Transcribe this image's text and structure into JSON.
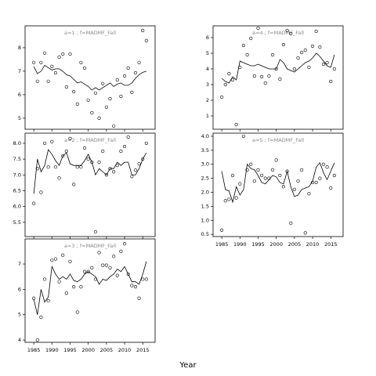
{
  "xlabel": "Year",
  "chart_data": [
    {
      "type": "scatter-line",
      "title": "a=1 ; f=MADMF_Fall",
      "xlim": [
        1982.6,
        2018.4
      ],
      "ylim": [
        4.53,
        8.93
      ],
      "xticks": [
        1985,
        1990,
        1995,
        2000,
        2005,
        2010,
        2015
      ],
      "yticks": [
        5,
        6,
        7,
        8
      ],
      "xtick_labels": false,
      "x": [
        1985,
        1986,
        1987,
        1988,
        1989,
        1990,
        1991,
        1992,
        1993,
        1994,
        1995,
        1996,
        1997,
        1998,
        1999,
        2000,
        2001,
        2002,
        2003,
        2004,
        2005,
        2006,
        2007,
        2008,
        2009,
        2010,
        2011,
        2012,
        2013,
        2014,
        2015,
        2016
      ],
      "series": [
        {
          "style": "points",
          "color": "#000000",
          "values": [
            7.37,
            6.57,
            7.37,
            7.77,
            6.57,
            7.2,
            6.93,
            7.6,
            7.73,
            6.33,
            7.73,
            6.13,
            5.6,
            7.37,
            7.13,
            5.77,
            5.23,
            6.07,
            5.0,
            6.47,
            5.47,
            5.83,
            4.67,
            6.63,
            5.93,
            6.8,
            7.13,
            6.1,
            6.93,
            7.37,
            8.73,
            8.3
          ]
        },
        {
          "style": "line",
          "color": "#000000",
          "values": [
            7.2,
            6.9,
            7.0,
            7.25,
            7.15,
            7.05,
            7.1,
            7.1,
            7.0,
            6.85,
            6.8,
            6.65,
            6.5,
            6.55,
            6.45,
            6.35,
            6.2,
            6.3,
            6.2,
            6.3,
            6.4,
            6.5,
            6.35,
            6.45,
            6.5,
            6.4,
            6.4,
            6.5,
            6.7,
            6.85,
            6.95,
            7.0
          ]
        }
      ]
    },
    {
      "type": "scatter-line",
      "title": "a=2 ; f=MADMF_Fall",
      "xlim": [
        1982.6,
        2018.4
      ],
      "ylim": [
        5.05,
        8.32
      ],
      "xticks": [
        1985,
        1990,
        1995,
        2000,
        2005,
        2010,
        2015
      ],
      "yticks": [
        5.5,
        {
          "value": 6,
          "label": "6.0"
        },
        6.5,
        {
          "value": 7,
          "label": "7.0"
        },
        7.5,
        {
          "value": 8,
          "label": "8.0"
        }
      ],
      "xtick_labels": false,
      "x": [
        1985,
        1986,
        1987,
        1988,
        1989,
        1990,
        1991,
        1992,
        1993,
        1994,
        1995,
        1996,
        1997,
        1998,
        1999,
        2000,
        2001,
        2002,
        2003,
        2004,
        2005,
        2006,
        2007,
        2008,
        2009,
        2010,
        2011,
        2012,
        2013,
        2014,
        2015,
        2016
      ],
      "series": [
        {
          "style": "points",
          "color": "#000000",
          "values": [
            6.1,
            7.2,
            6.45,
            8.0,
            7.25,
            8.05,
            7.25,
            6.9,
            7.6,
            7.75,
            8.15,
            6.7,
            7.25,
            7.25,
            7.85,
            7.5,
            7.4,
            5.2,
            7.4,
            7.75,
            7.0,
            7.2,
            7.1,
            7.3,
            7.75,
            7.9,
            8.2,
            6.95,
            7.15,
            7.35,
            7.5,
            8.0
          ]
        },
        {
          "style": "line",
          "color": "#000000",
          "values": [
            6.4,
            7.5,
            7.1,
            7.3,
            7.8,
            7.65,
            7.45,
            7.3,
            7.6,
            7.7,
            7.35,
            7.3,
            7.3,
            7.3,
            7.45,
            7.65,
            7.4,
            7.0,
            7.2,
            7.1,
            7.0,
            7.2,
            7.2,
            7.4,
            7.3,
            7.4,
            7.4,
            7.0,
            7.0,
            7.2,
            7.5,
            7.7
          ]
        }
      ]
    },
    {
      "type": "scatter-line",
      "title": "a=3 ; f=MADMF_Fall",
      "xlim": [
        1982.6,
        2018.4
      ],
      "ylim": [
        3.91,
        7.99
      ],
      "xticks": [
        1985,
        1990,
        1995,
        2000,
        2005,
        2010,
        2015
      ],
      "yticks": [
        4,
        5,
        6,
        7
      ],
      "xtick_labels": true,
      "x": [
        1985,
        1986,
        1987,
        1988,
        1989,
        1990,
        1991,
        1992,
        1993,
        1994,
        1995,
        1996,
        1997,
        1998,
        1999,
        2000,
        2001,
        2002,
        2003,
        2004,
        2005,
        2006,
        2007,
        2008,
        2009,
        2010,
        2011,
        2012,
        2013,
        2014,
        2015,
        2016
      ],
      "series": [
        {
          "style": "points",
          "color": "#000000",
          "values": [
            5.65,
            4.0,
            4.9,
            6.4,
            5.55,
            7.15,
            7.2,
            6.3,
            7.35,
            5.85,
            7.1,
            6.1,
            5.1,
            6.1,
            6.7,
            6.7,
            6.85,
            6.4,
            7.45,
            6.95,
            6.95,
            6.85,
            7.3,
            6.55,
            7.5,
            7.8,
            6.6,
            6.15,
            6.1,
            5.65,
            6.4,
            6.4
          ]
        },
        {
          "style": "line",
          "color": "#000000",
          "values": [
            5.6,
            5.0,
            6.0,
            5.5,
            5.7,
            6.9,
            6.6,
            6.4,
            6.5,
            6.4,
            6.6,
            6.35,
            6.3,
            6.4,
            6.6,
            6.7,
            6.6,
            6.5,
            6.2,
            6.4,
            6.35,
            6.5,
            6.6,
            6.8,
            6.7,
            6.9,
            6.6,
            6.3,
            6.3,
            6.2,
            6.6,
            7.1
          ]
        }
      ]
    },
    {
      "type": "scatter-line",
      "title": "a=4 ; f=MADMF_Fall",
      "xlim": [
        1982.6,
        2018.4
      ],
      "ylim": [
        0.15,
        6.75
      ],
      "xticks": [
        1985,
        1990,
        1995,
        2000,
        2005,
        2010,
        2015
      ],
      "yticks": [
        1,
        2,
        3,
        4,
        5,
        6
      ],
      "xtick_labels": false,
      "x": [
        1985,
        1986,
        1987,
        1988,
        1989,
        1990,
        1991,
        1992,
        1993,
        1994,
        1995,
        1996,
        1997,
        1998,
        1999,
        2000,
        2001,
        2002,
        2003,
        2004,
        2005,
        2006,
        2007,
        2008,
        2009,
        2010,
        2011,
        2012,
        2013,
        2014,
        2015,
        2016
      ],
      "series": [
        {
          "style": "points",
          "color": "#000000",
          "values": [
            2.2,
            3.0,
            3.7,
            3.3,
            0.45,
            4.1,
            5.5,
            4.9,
            5.95,
            3.55,
            6.6,
            3.5,
            3.1,
            3.55,
            4.9,
            4.0,
            3.35,
            5.55,
            6.45,
            6.25,
            4.0,
            4.7,
            5.05,
            5.2,
            4.1,
            5.45,
            6.4,
            5.4,
            4.3,
            4.4,
            3.2,
            4.0
          ]
        },
        {
          "style": "line",
          "color": "#000000",
          "values": [
            3.4,
            3.2,
            3.1,
            3.5,
            3.3,
            4.5,
            4.4,
            4.3,
            4.2,
            4.2,
            4.3,
            4.2,
            4.1,
            4.0,
            4.0,
            4.0,
            4.6,
            4.4,
            4.0,
            3.9,
            3.8,
            4.0,
            4.2,
            4.4,
            4.5,
            4.7,
            5.0,
            4.8,
            4.5,
            4.2,
            4.1,
            4.9
          ]
        }
      ]
    },
    {
      "type": "scatter-line",
      "title": "a=5 ; f=MADMF_Fall",
      "xlim": [
        1982.6,
        2018.4
      ],
      "ylim": [
        0.42,
        4.11
      ],
      "xticks": [
        1985,
        1990,
        1995,
        2000,
        2005,
        2010,
        2015
      ],
      "yticks": [
        0.5,
        {
          "value": 1,
          "label": "1.0"
        },
        1.5,
        {
          "value": 2,
          "label": "2.0"
        },
        2.5,
        {
          "value": 3,
          "label": "3.0"
        },
        3.5,
        {
          "value": 4,
          "label": "4.0"
        }
      ],
      "xtick_labels": true,
      "x": [
        1985,
        1986,
        1987,
        1988,
        1989,
        1990,
        1991,
        1992,
        1993,
        1994,
        1995,
        1996,
        1997,
        1998,
        1999,
        2000,
        2001,
        2002,
        2003,
        2004,
        2005,
        2006,
        2007,
        2008,
        2009,
        2010,
        2011,
        2012,
        2013,
        2014,
        2015,
        2016
      ],
      "series": [
        {
          "style": "points",
          "color": "#000000",
          "values": [
            0.65,
            1.7,
            1.75,
            2.6,
            1.8,
            2.3,
            4.0,
            2.8,
            3.0,
            2.4,
            2.8,
            2.6,
            2.5,
            2.5,
            2.8,
            3.15,
            2.6,
            2.2,
            2.75,
            0.9,
            2.1,
            2.4,
            2.8,
            0.55,
            1.95,
            2.35,
            2.35,
            2.5,
            3.0,
            2.9,
            2.15,
            2.6
          ]
        },
        {
          "style": "line",
          "color": "#000000",
          "values": [
            2.75,
            2.1,
            2.05,
            1.65,
            2.2,
            1.9,
            2.1,
            3.0,
            2.85,
            2.8,
            2.6,
            2.35,
            2.3,
            2.45,
            2.6,
            2.55,
            2.35,
            2.3,
            2.75,
            2.2,
            1.85,
            1.9,
            2.1,
            2.15,
            2.2,
            2.4,
            2.9,
            3.05,
            2.7,
            2.45,
            2.75,
            3.05
          ]
        }
      ]
    }
  ]
}
